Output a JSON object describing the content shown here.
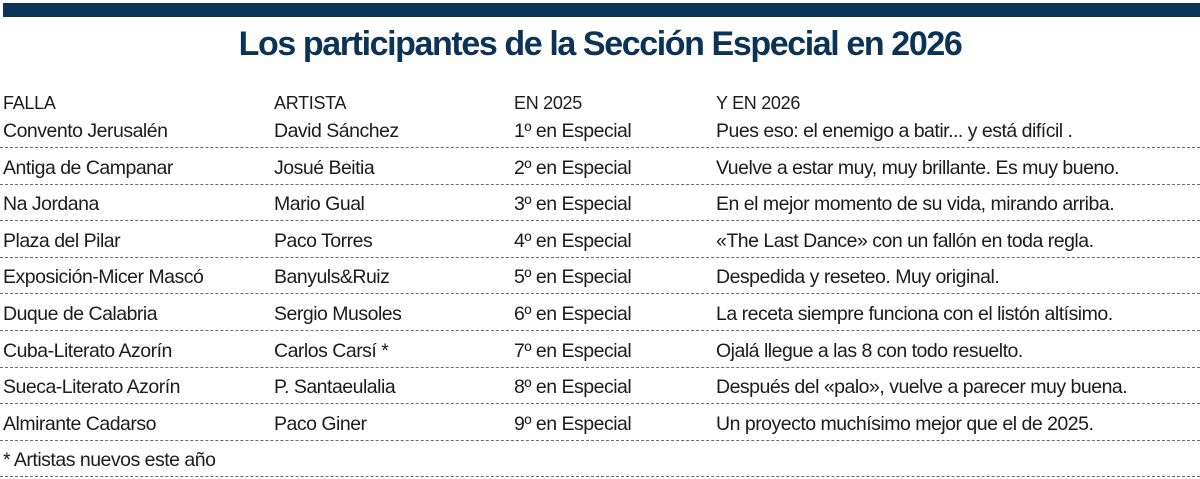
{
  "colors": {
    "accent": "#0b3358",
    "text": "#1c1c1c",
    "divider": "#6b6b6b"
  },
  "title": "Los participantes de la Sección Especial en 2026",
  "columns": [
    "FALLA",
    "ARTISTA",
    "EN 2025",
    "Y EN 2026"
  ],
  "rows": [
    {
      "falla": "Convento Jerusalén",
      "artista": "David Sánchez",
      "en2025": "1º en Especial",
      "en2026": "Pues eso: el enemigo a batir... y está difícil ."
    },
    {
      "falla": "Antiga de Campanar",
      "artista": "Josué Beitia",
      "en2025": "2º en Especial",
      "en2026": "Vuelve a estar muy, muy brillante. Es muy bueno."
    },
    {
      "falla": "Na Jordana",
      "artista": "Mario Gual",
      "en2025": "3º en Especial",
      "en2026": "En el mejor momento de su vida, mirando arriba."
    },
    {
      "falla": "Plaza del Pilar",
      "artista": "Paco Torres",
      "en2025": "4º en Especial",
      "en2026": "«The Last Dance» con un fallón en toda regla."
    },
    {
      "falla": "Exposición-Micer Mascó",
      "artista": "Banyuls&Ruiz",
      "en2025": "5º en Especial",
      "en2026": "Despedida y reseteo. Muy original."
    },
    {
      "falla": "Duque de Calabria",
      "artista": "Sergio Musoles",
      "en2025": "6º en Especial",
      "en2026": "La receta siempre funciona con el listón altísimo."
    },
    {
      "falla": "Cuba-Literato Azorín",
      "artista": "Carlos Carsí *",
      "en2025": "7º en Especial",
      "en2026": "Ojalá llegue a las 8 con todo resuelto."
    },
    {
      "falla": "Sueca-Literato Azorín",
      "artista": "P. Santaeulalia",
      "en2025": "8º en Especial",
      "en2026": "Después del «palo», vuelve a parecer muy buena."
    },
    {
      "falla": "Almirante Cadarso",
      "artista": "Paco Giner",
      "en2025": "9º en Especial",
      "en2026": "Un proyecto muchísimo mejor que el de 2025."
    }
  ],
  "footnote": "* Artistas nuevos este año"
}
